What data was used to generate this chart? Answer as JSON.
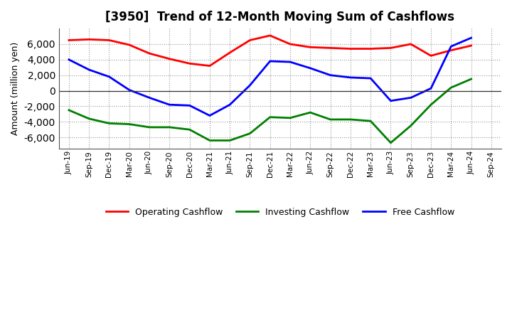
{
  "title": "[3950]  Trend of 12-Month Moving Sum of Cashflows",
  "ylabel": "Amount (million yen)",
  "background_color": "#ffffff",
  "grid_color": "#999999",
  "labels": [
    "Jun-19",
    "Sep-19",
    "Dec-19",
    "Mar-20",
    "Jun-20",
    "Sep-20",
    "Dec-20",
    "Mar-21",
    "Jun-21",
    "Sep-21",
    "Dec-21",
    "Mar-22",
    "Jun-22",
    "Sep-22",
    "Dec-22",
    "Mar-23",
    "Jun-23",
    "Sep-23",
    "Dec-23",
    "Mar-24",
    "Jun-24",
    "Sep-24"
  ],
  "operating_cashflow": [
    6500,
    6600,
    6500,
    5900,
    4800,
    4100,
    3500,
    3200,
    4900,
    6500,
    7100,
    6000,
    5600,
    5500,
    5400,
    5400,
    5500,
    6000,
    4500,
    5200,
    5800,
    null
  ],
  "investing_cashflow": [
    -2500,
    -3600,
    -4200,
    -4300,
    -4700,
    -4700,
    -5000,
    -6400,
    -6400,
    -5500,
    -3400,
    -3500,
    -2800,
    -3700,
    -3700,
    -3900,
    -6700,
    -4500,
    -1800,
    400,
    1500,
    null
  ],
  "free_cashflow": [
    4000,
    2700,
    1800,
    100,
    -900,
    -1800,
    -1900,
    -3200,
    -1800,
    700,
    3800,
    3700,
    2900,
    2000,
    1700,
    1600,
    -1300,
    -900,
    300,
    5700,
    6800,
    null
  ],
  "operating_color": "#ff0000",
  "investing_color": "#008000",
  "free_color": "#0000ff",
  "ylim": [
    -7500,
    8000
  ],
  "yticks": [
    -6000,
    -4000,
    -2000,
    0,
    2000,
    4000,
    6000
  ],
  "line_width": 2.0
}
